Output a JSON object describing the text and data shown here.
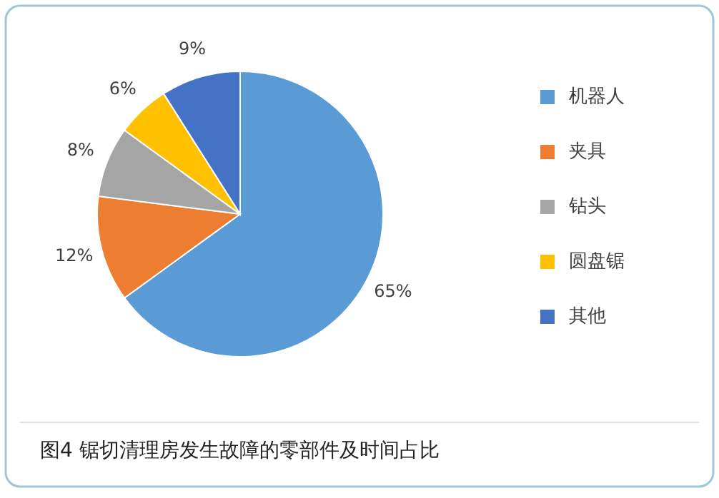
{
  "chart_data": {
    "type": "pie",
    "title": "图4 锯切清理房发生故障的零部件及时间占比",
    "categories": [
      "机器人",
      "夹具",
      "钻头",
      "圆盘锯",
      "其他"
    ],
    "values": [
      65,
      12,
      8,
      6,
      9
    ],
    "value_labels": [
      "65%",
      "12%",
      "8%",
      "6%",
      "9%"
    ],
    "colors": [
      "#5b9bd5",
      "#ed7d31",
      "#a5a5a5",
      "#ffc000",
      "#4472c4"
    ],
    "legend": "right"
  }
}
